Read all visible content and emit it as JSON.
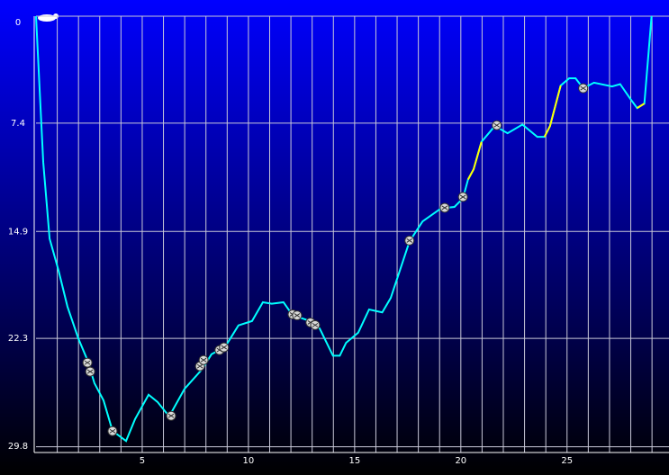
{
  "chart_data": {
    "type": "line",
    "inverted_y": true,
    "x": [
      0,
      0.34,
      0.64,
      1.06,
      1.48,
      1.99,
      2.42,
      2.75,
      3.18,
      3.6,
      4.24,
      4.66,
      5.3,
      5.72,
      6.27,
      6.99,
      7.84,
      8.26,
      8.9,
      9.53,
      10.17,
      10.68,
      11.1,
      11.65,
      12.08,
      12.71,
      13.35,
      13.98,
      14.3,
      14.6,
      15.17,
      15.68,
      16.3,
      16.7,
      17.58,
      18.2,
      19.07,
      19.7,
      20.1,
      20.34,
      20.6,
      20.97,
      21.6,
      22.2,
      22.9,
      23.6,
      23.94,
      24.2,
      24.7,
      25.1,
      25.4,
      25.76,
      26.27,
      27.12,
      27.5,
      27.97,
      28.3,
      28.64,
      28.98
    ],
    "series": [
      {
        "color": "#00ffff",
        "values": [
          0,
          10.1,
          15.4,
          17.6,
          20.1,
          22.3,
          23.8,
          25.4,
          26.6,
          28.7,
          29.4,
          27.9,
          26.2,
          26.7,
          27.7,
          25.8,
          24.4,
          23.4,
          22.9,
          21.4,
          21.1,
          19.8,
          19.9,
          19.8,
          20.7,
          21.0,
          21.6,
          23.5,
          23.5,
          22.6,
          21.9,
          20.3,
          20.5,
          19.5,
          15.6,
          14.2,
          13.3,
          13.2,
          12.6,
          11.3,
          10.6,
          8.7,
          7.6,
          8.1,
          7.5,
          8.35,
          8.35,
          7.6,
          4.8,
          4.3,
          4.3,
          4.99,
          4.6,
          4.86,
          4.7,
          5.7,
          6.36,
          6.05,
          0
        ]
      },
      {
        "color": "#ffff00",
        "values": [
          null,
          null,
          null,
          null,
          null,
          null,
          null,
          null,
          null,
          null,
          null,
          null,
          null,
          null,
          null,
          null,
          null,
          null,
          null,
          null,
          null,
          null,
          null,
          null,
          null,
          null,
          null,
          null,
          null,
          null,
          null,
          null,
          null,
          null,
          null,
          null,
          null,
          null,
          null,
          11.3,
          10.6,
          8.7,
          null,
          null,
          null,
          null,
          8.35,
          7.6,
          4.8,
          null,
          null,
          null,
          null,
          null,
          null,
          null,
          6.36,
          6.05,
          null
        ]
      }
    ],
    "markers": {
      "x": [
        2.42,
        2.55,
        3.6,
        6.36,
        7.72,
        7.89,
        8.64,
        8.85,
        12.08,
        12.29,
        12.92,
        13.14,
        17.58,
        19.24,
        20.1,
        21.69,
        25.76
      ],
      "values": [
        23.98,
        24.6,
        28.72,
        27.66,
        24.23,
        23.8,
        23.11,
        22.92,
        20.64,
        20.71,
        21.2,
        21.38,
        15.53,
        13.26,
        12.51,
        7.55,
        4.99
      ]
    },
    "xlim": [
      0,
      29.8
    ],
    "ylim": [
      0,
      30.2
    ],
    "xticks": [
      5,
      10,
      15,
      20,
      25
    ],
    "xgrid": [
      1,
      2,
      3,
      4,
      5,
      6,
      7,
      8,
      9,
      10,
      11,
      12,
      13,
      14,
      15,
      16,
      17,
      18,
      19,
      20,
      21,
      22,
      23,
      24,
      25,
      26,
      27,
      28,
      29
    ],
    "yticks": [
      0,
      7.4,
      14.9,
      22.3,
      29.8
    ],
    "grid": true
  }
}
